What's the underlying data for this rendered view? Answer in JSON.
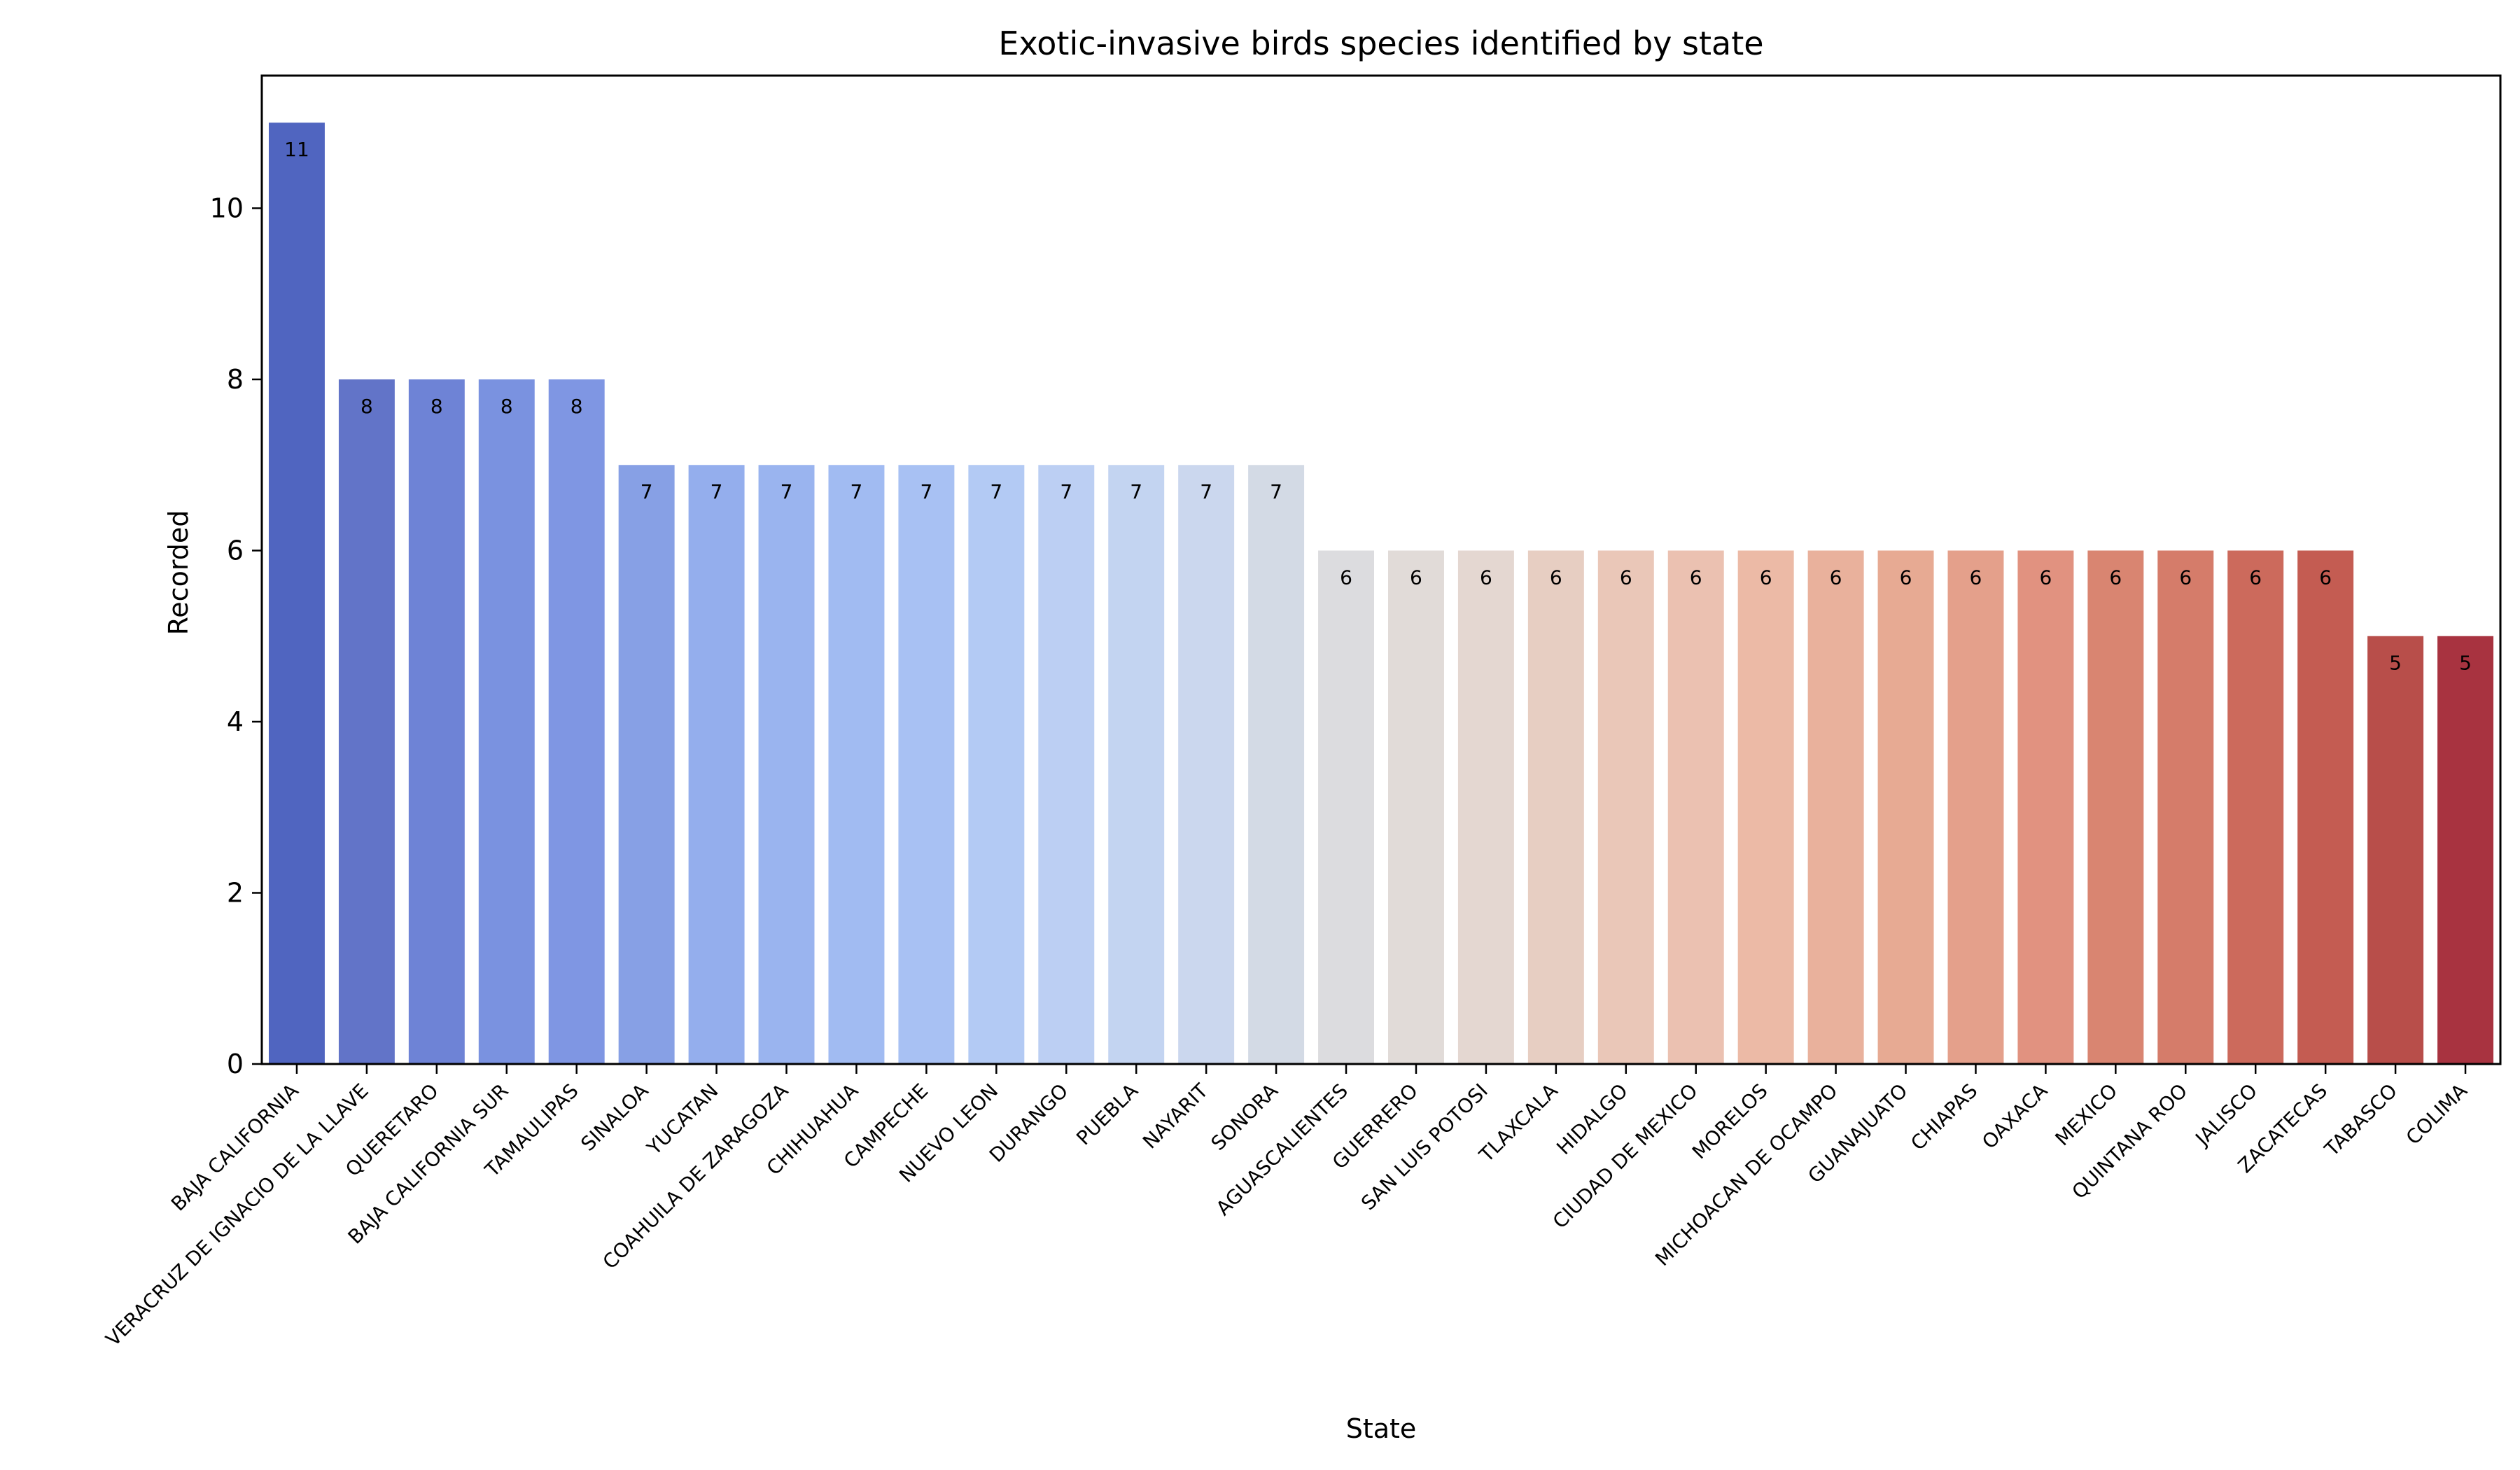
{
  "chart_data": {
    "type": "bar",
    "title": "Exotic-invasive birds species identified by state",
    "xlabel": "State",
    "ylabel": "Recorded",
    "ylim": [
      0,
      11.55
    ],
    "yticks": [
      "0",
      "2",
      "4",
      "6",
      "8",
      "10"
    ],
    "grid": false,
    "legend": "none",
    "categories": [
      "BAJA CALIFORNIA",
      "VERACRUZ DE IGNACIO DE LA LLAVE",
      "QUERETARO",
      "BAJA CALIFORNIA SUR",
      "TAMAULIPAS",
      "SINALOA",
      "YUCATAN",
      "COAHUILA DE ZARAGOZA",
      "CHIHUAHUA",
      "CAMPECHE",
      "NUEVO LEON",
      "DURANGO",
      "PUEBLA",
      "NAYARIT",
      "SONORA",
      "AGUASCALIENTES",
      "GUERRERO",
      "SAN LUIS POTOSI",
      "TLAXCALA",
      "HIDALGO",
      "CIUDAD DE MEXICO",
      "MORELOS",
      "MICHOACAN DE OCAMPO",
      "GUANAJUATO",
      "CHIAPAS",
      "OAXACA",
      "MEXICO",
      "QUINTANA ROO",
      "JALISCO",
      "ZACATECAS",
      "TABASCO",
      "COLIMA"
    ],
    "values": [
      11,
      8,
      8,
      8,
      8,
      7,
      7,
      7,
      7,
      7,
      7,
      7,
      7,
      7,
      7,
      6,
      6,
      6,
      6,
      6,
      6,
      6,
      6,
      6,
      6,
      6,
      6,
      6,
      6,
      6,
      5,
      5
    ],
    "data_labels": [
      "11",
      "8",
      "8",
      "8",
      "8",
      "7",
      "7",
      "7",
      "7",
      "7",
      "7",
      "7",
      "7",
      "7",
      "7",
      "6",
      "6",
      "6",
      "6",
      "6",
      "6",
      "6",
      "6",
      "6",
      "6",
      "6",
      "6",
      "6",
      "6",
      "6",
      "5",
      "5"
    ],
    "colors": [
      "#5065c0",
      "#6274c8",
      "#6e83d6",
      "#7a92e0",
      "#7f96e3",
      "#87a0e5",
      "#94aeed",
      "#9ab4ef",
      "#a1bbf2",
      "#a8c1f3",
      "#b3caf4",
      "#bccff3",
      "#c3d4f1",
      "#cbd7ee",
      "#d3dae5",
      "#dcdcdf",
      "#e1dbd8",
      "#e4d7d1",
      "#e7cec2",
      "#eac7b8",
      "#ebc1b1",
      "#ecbaa6",
      "#e9b19c",
      "#e7aa93",
      "#e4a08b",
      "#e19280",
      "#d98571",
      "#d57c6a",
      "#cc6a5c",
      "#c45c52",
      "#b84e4a",
      "#a83340"
    ]
  }
}
